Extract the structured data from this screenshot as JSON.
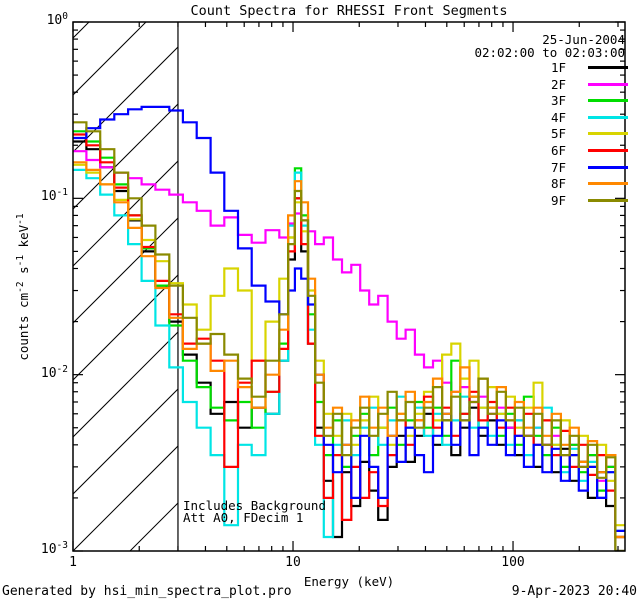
{
  "header": {
    "title": "Count Spectra for RHESSI Front Segments",
    "date": "25-Jun-2004",
    "time_range": "02:02:00 to 02:03:00"
  },
  "annotations": [
    "Includes Background",
    "Att A0, FDecim 1"
  ],
  "footer": {
    "left": "Generated by hsi_min_spectra_plot.pro",
    "right": "9-Apr-2023 20:40"
  },
  "chart_data": {
    "type": "line",
    "title": "Count Spectra for RHESSI Front Segments",
    "xlabel": "Energy (keV)",
    "ylabel_parts": [
      {
        "t": "counts cm"
      },
      {
        "t": "-2",
        "sup": true
      },
      {
        "t": " s"
      },
      {
        "t": "-1",
        "sup": true
      },
      {
        "t": " keV"
      },
      {
        "t": "-1",
        "sup": true
      }
    ],
    "x_scale": "log",
    "y_scale": "log",
    "xlim": [
      1,
      322.8
    ],
    "ylim": [
      0.001,
      1
    ],
    "grid": false,
    "legend_position": "upper-right-inside",
    "x_ticks": [
      {
        "value": 1,
        "label": "1"
      },
      {
        "value": 10,
        "label": "10"
      },
      {
        "value": 100,
        "label": "100"
      }
    ],
    "y_ticks": [
      {
        "value": 1,
        "base": "10",
        "exp": "0"
      },
      {
        "value": 0.1,
        "base": "10",
        "exp": "-1"
      },
      {
        "value": 0.01,
        "base": "10",
        "exp": "-2"
      },
      {
        "value": 0.001,
        "base": "10",
        "exp": "-3"
      }
    ],
    "hatch_region": {
      "from_kev": 1,
      "to_kev": 3.0
    },
    "energy_edges": [
      1.0,
      1.15,
      1.33,
      1.54,
      1.78,
      2.05,
      2.37,
      2.74,
      3.16,
      3.65,
      4.22,
      4.87,
      5.62,
      6.49,
      7.5,
      8.66,
      9.5,
      10.2,
      10.9,
      11.7,
      12.6,
      13.8,
      15.2,
      16.7,
      18.4,
      20.2,
      22.2,
      24.4,
      26.9,
      29.6,
      32.5,
      35.8,
      39.4,
      43.3,
      47.6,
      52.4,
      57.6,
      63.4,
      69.7,
      76.7,
      84.4,
      92.8,
      102,
      112,
      124,
      136,
      150,
      165,
      181,
      199,
      219,
      241,
      265,
      292
    ],
    "series": [
      {
        "name": "1F",
        "color": "#000000",
        "values": [
          0.21,
          0.19,
          0.15,
          0.11,
          0.075,
          0.05,
          0.032,
          0.02,
          0.013,
          0.009,
          0.006,
          0.007,
          0.005,
          0.0065,
          0.006,
          0.012,
          0.045,
          0.1,
          0.05,
          0.015,
          0.005,
          0.0025,
          0.0012,
          0.0028,
          0.0018,
          0.0032,
          0.0022,
          0.0015,
          0.003,
          0.0045,
          0.0032,
          0.0045,
          0.006,
          0.004,
          0.0055,
          0.0035,
          0.005,
          0.0065,
          0.0045,
          0.0055,
          0.004,
          0.005,
          0.0035,
          0.0045,
          0.003,
          0.004,
          0.0028,
          0.0038,
          0.0025,
          0.0032,
          0.002,
          0.0028,
          0.0018,
          0.001
        ]
      },
      {
        "name": "2F",
        "color": "#ff00ff",
        "values": [
          0.185,
          0.165,
          0.15,
          0.14,
          0.13,
          0.12,
          0.112,
          0.105,
          0.095,
          0.085,
          0.07,
          0.078,
          0.062,
          0.056,
          0.066,
          0.06,
          0.072,
          0.082,
          0.075,
          0.065,
          0.055,
          0.06,
          0.045,
          0.038,
          0.042,
          0.03,
          0.025,
          0.028,
          0.02,
          0.016,
          0.018,
          0.013,
          0.011,
          0.012,
          0.009,
          0.008,
          0.0085,
          0.007,
          0.0075,
          0.006,
          0.0065,
          0.005,
          0.0055,
          0.0045,
          0.005,
          0.004,
          0.0045,
          0.0035,
          0.004,
          0.003,
          0.0035,
          0.0025,
          0.003,
          0.0012
        ]
      },
      {
        "name": "3F",
        "color": "#00dd00",
        "values": [
          0.24,
          0.21,
          0.17,
          0.12,
          0.08,
          0.052,
          0.032,
          0.019,
          0.012,
          0.0085,
          0.0065,
          0.0055,
          0.007,
          0.005,
          0.008,
          0.015,
          0.06,
          0.148,
          0.08,
          0.022,
          0.007,
          0.0035,
          0.0055,
          0.003,
          0.0045,
          0.006,
          0.0035,
          0.005,
          0.0065,
          0.004,
          0.0055,
          0.007,
          0.005,
          0.0065,
          0.0045,
          0.012,
          0.006,
          0.0075,
          0.005,
          0.0065,
          0.0045,
          0.006,
          0.004,
          0.0075,
          0.0045,
          0.0035,
          0.005,
          0.003,
          0.004,
          0.0028,
          0.0035,
          0.0022,
          0.003,
          0.0012
        ]
      },
      {
        "name": "4F",
        "color": "#00e5e5",
        "values": [
          0.145,
          0.13,
          0.105,
          0.08,
          0.055,
          0.034,
          0.019,
          0.011,
          0.007,
          0.005,
          0.0035,
          0.0014,
          0.004,
          0.0035,
          0.006,
          0.012,
          0.07,
          0.14,
          0.07,
          0.018,
          0.004,
          0.0012,
          0.004,
          0.0055,
          0.0035,
          0.005,
          0.0065,
          0.004,
          0.0055,
          0.0075,
          0.005,
          0.0065,
          0.0045,
          0.006,
          0.004,
          0.0055,
          0.0075,
          0.005,
          0.0065,
          0.0045,
          0.006,
          0.004,
          0.0055,
          0.0035,
          0.005,
          0.0065,
          0.004,
          0.0028,
          0.0038,
          0.0025,
          0.0032,
          0.002,
          0.0028,
          0.0013
        ]
      },
      {
        "name": "5F",
        "color": "#d8d400",
        "values": [
          0.155,
          0.14,
          0.12,
          0.098,
          0.076,
          0.058,
          0.044,
          0.033,
          0.025,
          0.018,
          0.028,
          0.04,
          0.03,
          0.012,
          0.02,
          0.035,
          0.06,
          0.095,
          0.065,
          0.03,
          0.012,
          0.006,
          0.0045,
          0.006,
          0.004,
          0.0055,
          0.0075,
          0.005,
          0.004,
          0.006,
          0.0045,
          0.006,
          0.008,
          0.0055,
          0.013,
          0.015,
          0.0095,
          0.012,
          0.0065,
          0.0085,
          0.006,
          0.0075,
          0.005,
          0.0065,
          0.009,
          0.0055,
          0.004,
          0.0055,
          0.0035,
          0.0045,
          0.003,
          0.004,
          0.0025,
          0.0014
        ]
      },
      {
        "name": "6F",
        "color": "#ff0000",
        "values": [
          0.23,
          0.2,
          0.16,
          0.115,
          0.08,
          0.053,
          0.034,
          0.022,
          0.015,
          0.016,
          0.012,
          0.003,
          0.009,
          0.012,
          0.008,
          0.014,
          0.05,
          0.1,
          0.055,
          0.015,
          0.0045,
          0.002,
          0.0035,
          0.0015,
          0.003,
          0.002,
          0.0028,
          0.0018,
          0.0035,
          0.0055,
          0.004,
          0.0055,
          0.0075,
          0.005,
          0.0065,
          0.0045,
          0.006,
          0.008,
          0.0055,
          0.007,
          0.005,
          0.0065,
          0.0045,
          0.006,
          0.004,
          0.0055,
          0.0035,
          0.0048,
          0.003,
          0.004,
          0.0027,
          0.0035,
          0.0022,
          0.0012
        ]
      },
      {
        "name": "7F",
        "color": "#0000ff",
        "values": [
          0.22,
          0.25,
          0.28,
          0.3,
          0.32,
          0.33,
          0.33,
          0.315,
          0.27,
          0.22,
          0.14,
          0.085,
          0.052,
          0.032,
          0.026,
          0.022,
          0.03,
          0.04,
          0.035,
          0.025,
          0.01,
          0.004,
          0.0028,
          0.004,
          0.002,
          0.0045,
          0.003,
          0.002,
          0.0045,
          0.0032,
          0.005,
          0.0035,
          0.0028,
          0.0045,
          0.006,
          0.004,
          0.0055,
          0.0035,
          0.005,
          0.004,
          0.0055,
          0.0035,
          0.0045,
          0.003,
          0.004,
          0.0028,
          0.0038,
          0.0025,
          0.0035,
          0.0022,
          0.003,
          0.002,
          0.0028,
          0.0013
        ]
      },
      {
        "name": "8F",
        "color": "#ff8800",
        "values": [
          0.16,
          0.145,
          0.12,
          0.095,
          0.068,
          0.047,
          0.031,
          0.021,
          0.014,
          0.015,
          0.0105,
          0.012,
          0.0085,
          0.0065,
          0.01,
          0.018,
          0.08,
          0.125,
          0.095,
          0.035,
          0.01,
          0.005,
          0.0065,
          0.004,
          0.0055,
          0.0075,
          0.005,
          0.0065,
          0.0045,
          0.006,
          0.008,
          0.0055,
          0.007,
          0.0095,
          0.006,
          0.008,
          0.011,
          0.0075,
          0.0095,
          0.0065,
          0.0085,
          0.0055,
          0.007,
          0.005,
          0.0065,
          0.0045,
          0.006,
          0.004,
          0.005,
          0.0032,
          0.0042,
          0.0028,
          0.0035,
          0.0012
        ]
      },
      {
        "name": "9F",
        "color": "#8a8a00",
        "values": [
          0.27,
          0.24,
          0.19,
          0.14,
          0.1,
          0.07,
          0.048,
          0.032,
          0.021,
          0.015,
          0.017,
          0.013,
          0.0095,
          0.0075,
          0.012,
          0.022,
          0.055,
          0.11,
          0.075,
          0.028,
          0.009,
          0.0045,
          0.006,
          0.0035,
          0.005,
          0.0065,
          0.0045,
          0.006,
          0.008,
          0.0055,
          0.007,
          0.005,
          0.0065,
          0.0085,
          0.0055,
          0.0075,
          0.0055,
          0.007,
          0.0095,
          0.006,
          0.008,
          0.0055,
          0.0065,
          0.0045,
          0.006,
          0.004,
          0.0055,
          0.0035,
          0.0045,
          0.003,
          0.004,
          0.0026,
          0.0034,
          0.001
        ]
      }
    ]
  }
}
